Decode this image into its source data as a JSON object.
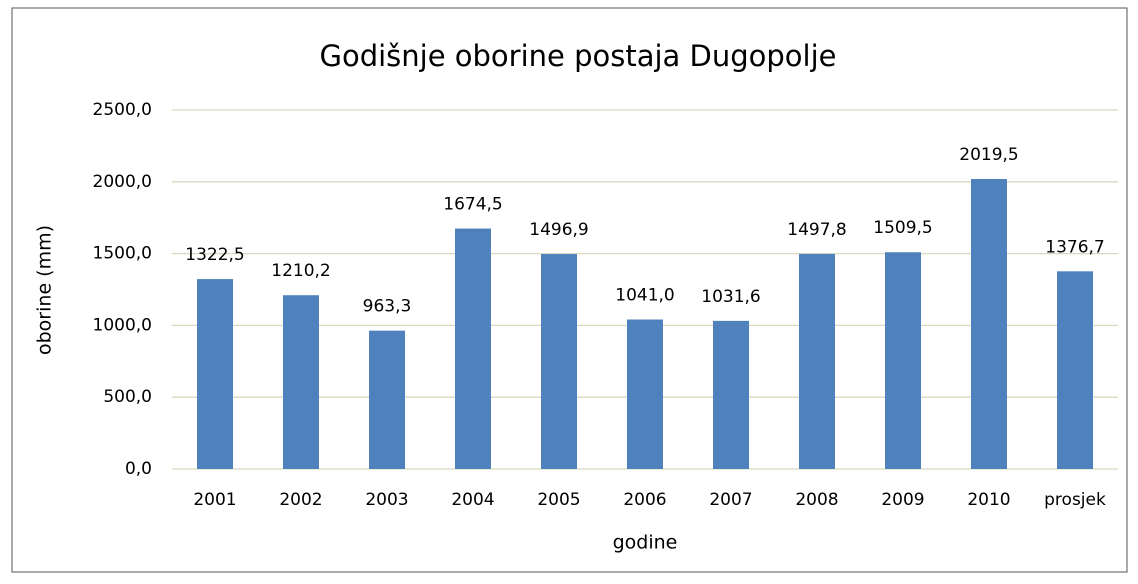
{
  "chart_data": {
    "type": "bar",
    "title": "Godišnje oborine postaja Dugopolje",
    "xlabel": "godine",
    "ylabel": "oborine (mm)",
    "categories": [
      "2001",
      "2002",
      "2003",
      "2004",
      "2005",
      "2006",
      "2007",
      "2008",
      "2009",
      "2010",
      "prosjek"
    ],
    "values": [
      1322.5,
      1210.2,
      963.3,
      1674.5,
      1496.9,
      1041.0,
      1031.6,
      1497.8,
      1509.5,
      2019.5,
      1376.7
    ],
    "value_labels": [
      "1322,5",
      "1210,2",
      "963,3",
      "1674,5",
      "1496,9",
      "1041,0",
      "1031,6",
      "1497,8",
      "1509,5",
      "2019,5",
      "1376,7"
    ],
    "color": "#4f81bd",
    "ylim": [
      0,
      2500
    ],
    "yticks": [
      {
        "value": 0,
        "label": "0,0"
      },
      {
        "value": 500,
        "label": "500,0"
      },
      {
        "value": 1000,
        "label": "1000,0"
      },
      {
        "value": 1500,
        "label": "1500,0"
      },
      {
        "value": 2000,
        "label": "2000,0"
      },
      {
        "value": 2500,
        "label": "2500,0"
      }
    ],
    "grid": true
  }
}
